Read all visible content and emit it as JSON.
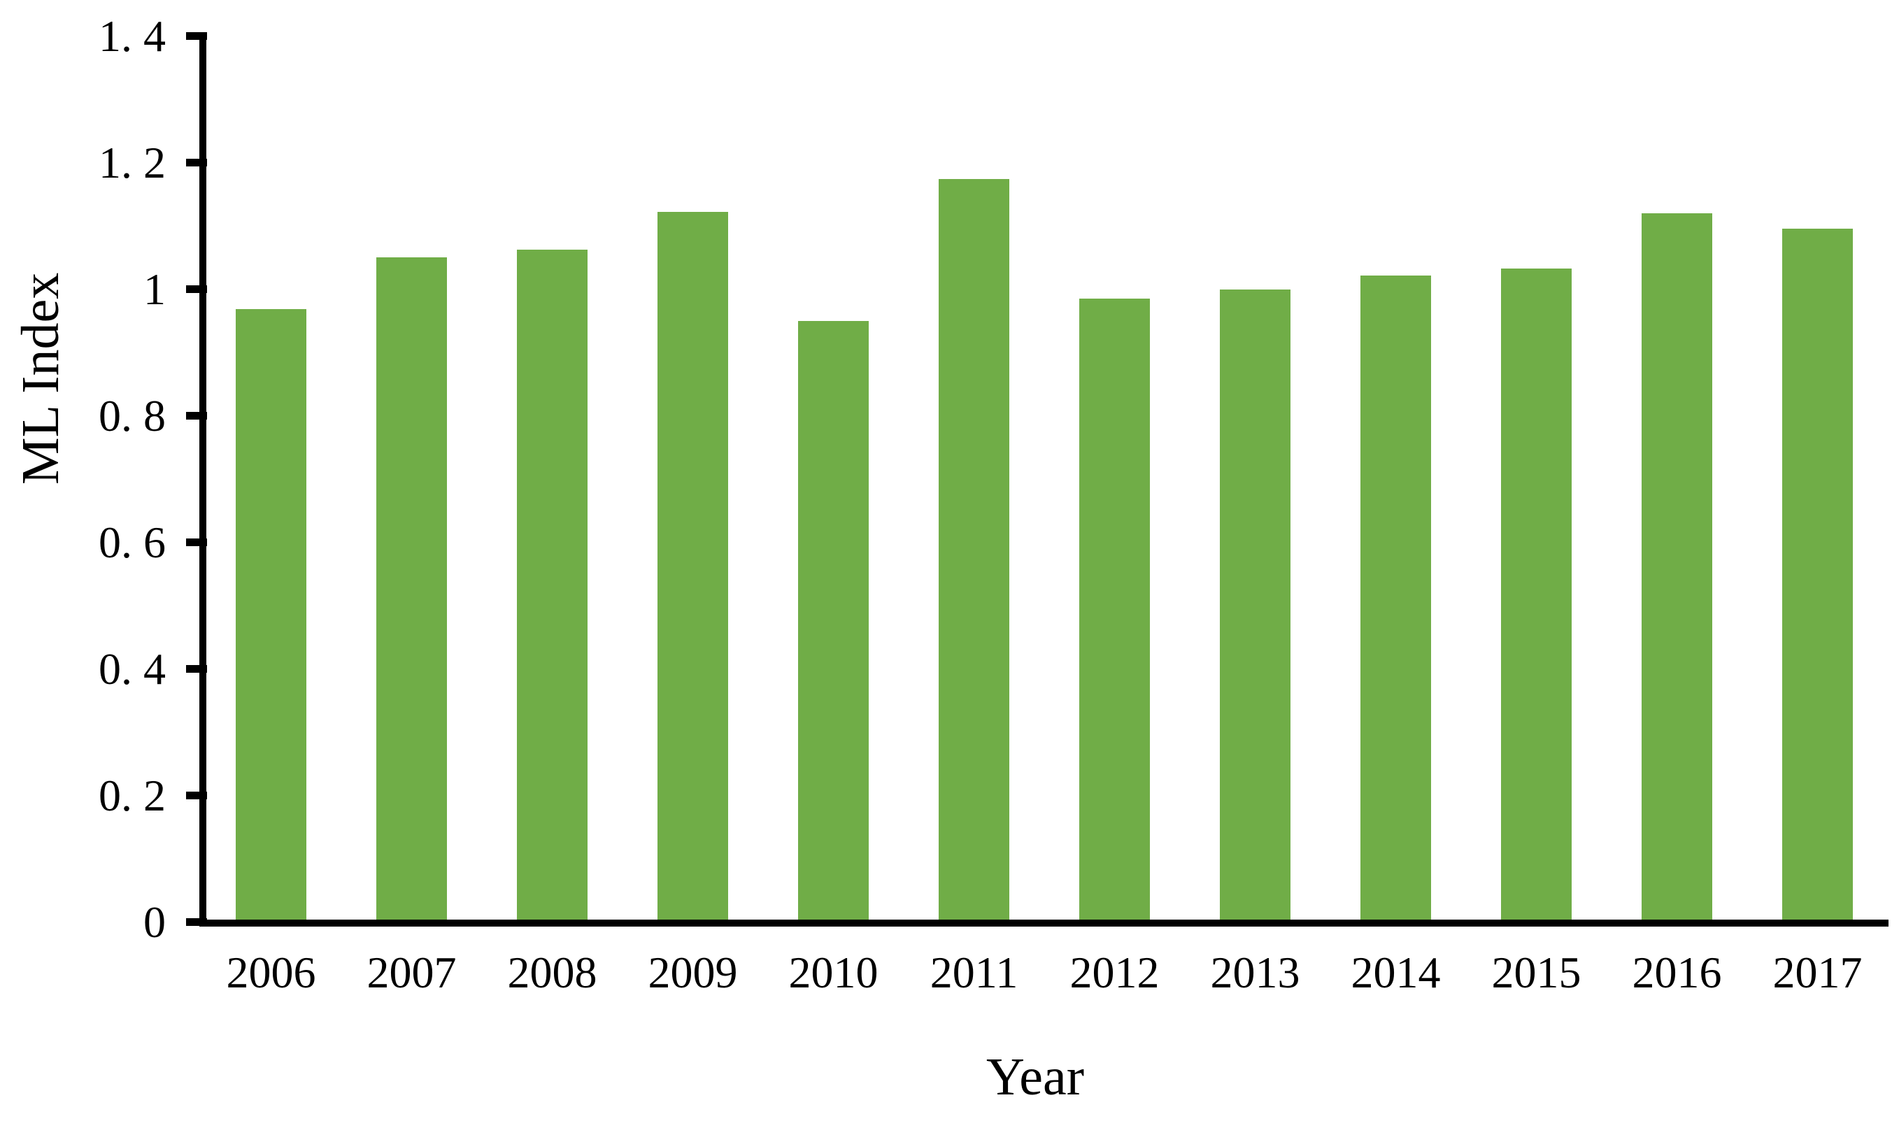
{
  "figure": {
    "background_color": "#ffffff",
    "bar_color": "#70AD47",
    "axis_color": "#000000",
    "text_color": "#000000"
  },
  "chart_data": {
    "type": "bar",
    "title": "",
    "xlabel": "Year",
    "ylabel": "ML Index",
    "categories": [
      "2006",
      "2007",
      "2008",
      "2009",
      "2010",
      "2011",
      "2012",
      "2013",
      "2014",
      "2015",
      "2016",
      "2017"
    ],
    "values": [
      0.969,
      1.051,
      1.063,
      1.123,
      0.95,
      1.175,
      0.986,
      1.0,
      1.022,
      1.033,
      1.12,
      1.096
    ],
    "series_name": "ML Index",
    "ylim": [
      0,
      1.4
    ],
    "ytick_values": [
      0,
      0.2,
      0.4,
      0.6,
      0.8,
      1.0,
      1.2,
      1.4
    ],
    "ytick_labels": [
      "0",
      "0. 2",
      "0. 4",
      "0. 6",
      "0. 8",
      "1",
      "1. 2",
      "1. 4"
    ],
    "grid": false,
    "legend_position": "none"
  }
}
